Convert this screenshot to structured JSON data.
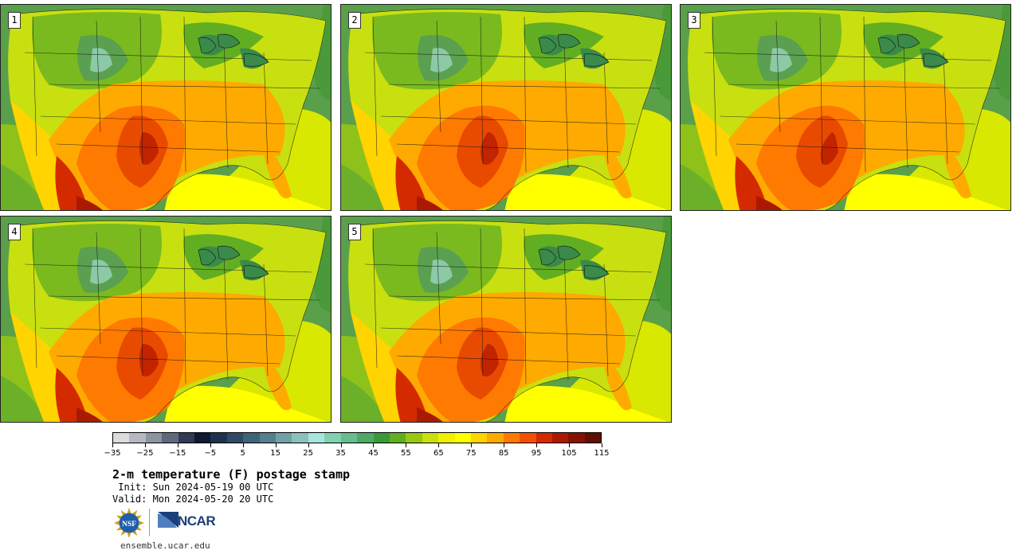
{
  "panels": [
    {
      "label": "1"
    },
    {
      "label": "2"
    },
    {
      "label": "3"
    },
    {
      "label": "4"
    },
    {
      "label": "5"
    }
  ],
  "colorbar": {
    "colors": [
      "#dcdcdc",
      "#b4b8c0",
      "#8c94a0",
      "#5e6a7c",
      "#2e3a56",
      "#0e1a30",
      "#1e3250",
      "#2e4a66",
      "#3e647a",
      "#55808e",
      "#72a0a6",
      "#8cc0bc",
      "#a6e6dc",
      "#82d0b0",
      "#68bc90",
      "#50a866",
      "#3a9a3a",
      "#62ae22",
      "#98c810",
      "#c8e010",
      "#f0f000",
      "#ffff00",
      "#ffd400",
      "#ffaa00",
      "#ff7a00",
      "#f25000",
      "#d42a00",
      "#aa1a00",
      "#881200",
      "#601000"
    ],
    "tick_labels": [
      "−35",
      "−25",
      "−15",
      "−5",
      "5",
      "15",
      "25",
      "35",
      "45",
      "55",
      "65",
      "75",
      "85",
      "95",
      "105",
      "115"
    ]
  },
  "title": "2-m temperature (F) postage stamp",
  "init": " Init: Sun 2024-05-19 00 UTC",
  "valid": "Valid: Mon 2024-05-20 20 UTC",
  "logos": {
    "nsf": "NSF",
    "ncar": "NCAR"
  },
  "site": "ensemble.ucar.edu"
}
